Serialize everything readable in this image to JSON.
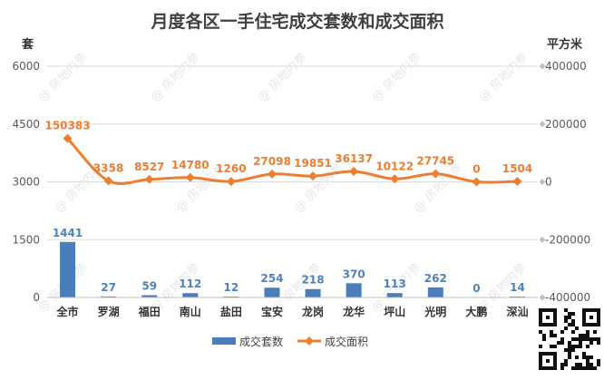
{
  "chart_data": {
    "type": "bar",
    "title": "月度各区一手住宅成交套数和成交面积",
    "y_left_unit": "套",
    "y_right_unit": "平方米",
    "categories": [
      "全市",
      "罗湖",
      "福田",
      "南山",
      "盐田",
      "宝安",
      "龙岗",
      "龙华",
      "坪山",
      "光明",
      "大鹏",
      "深汕"
    ],
    "series": [
      {
        "name": "成交套数",
        "type": "bar",
        "axis": "left",
        "color": "#4a7ebb",
        "values": [
          1441,
          27,
          59,
          112,
          12,
          254,
          218,
          370,
          113,
          262,
          0,
          14
        ]
      },
      {
        "name": "成交面积",
        "type": "line",
        "axis": "right",
        "color": "#ed7d31",
        "values": [
          150383,
          3358,
          8527,
          14780,
          1260,
          27098,
          19851,
          36137,
          10122,
          27745,
          0,
          1504
        ]
      }
    ],
    "ylim_left": [
      0,
      6000
    ],
    "yticks_left": [
      0,
      1500,
      3000,
      4500,
      6000
    ],
    "ylim_right": [
      -400000,
      400000
    ],
    "yticks_right": [
      -400000,
      -200000,
      0,
      200000,
      400000
    ],
    "grid": true,
    "legend_position": "bottom",
    "watermark": "房地内参"
  }
}
